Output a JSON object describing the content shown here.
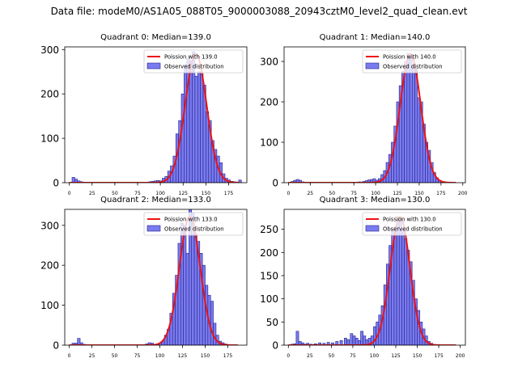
{
  "suptitle": "Data file: modeM0/AS1A05_088T05_9000003088_20943cztM0_level2_quad_clean.evt",
  "colors": {
    "hist_fill": "#7b7bf0",
    "hist_edge": "#23238a",
    "poisson_line": "#ee1111",
    "axes": "#000000"
  },
  "chart_data": [
    {
      "type": "bar",
      "title": "Quadrant 0: Median=139.0",
      "legend": {
        "placement": "top-right",
        "line_label": "Poission with 139.0",
        "hist_label": "Observed distribution"
      },
      "xlim": [
        -5,
        195
      ],
      "ylim": [
        0,
        306
      ],
      "xticks": [
        0,
        25,
        50,
        75,
        100,
        125,
        150,
        175
      ],
      "yticks": [
        0,
        100,
        200,
        300
      ],
      "bin_width": 3,
      "bins": [
        [
          3,
          12
        ],
        [
          6,
          8
        ],
        [
          9,
          4
        ],
        [
          12,
          2
        ],
        [
          15,
          1
        ],
        [
          87,
          2
        ],
        [
          90,
          3
        ],
        [
          93,
          4
        ],
        [
          96,
          5
        ],
        [
          99,
          4
        ],
        [
          102,
          10
        ],
        [
          105,
          14
        ],
        [
          108,
          26
        ],
        [
          111,
          38
        ],
        [
          114,
          60
        ],
        [
          117,
          110
        ],
        [
          120,
          140
        ],
        [
          123,
          200
        ],
        [
          126,
          265
        ],
        [
          129,
          280
        ],
        [
          132,
          275
        ],
        [
          135,
          295
        ],
        [
          138,
          240
        ],
        [
          141,
          250
        ],
        [
          144,
          245
        ],
        [
          147,
          220
        ],
        [
          150,
          160
        ],
        [
          153,
          140
        ],
        [
          156,
          95
        ],
        [
          159,
          75
        ],
        [
          162,
          60
        ],
        [
          165,
          45
        ],
        [
          168,
          20
        ],
        [
          171,
          10
        ],
        [
          174,
          6
        ],
        [
          177,
          3
        ],
        [
          180,
          2
        ],
        [
          183,
          1
        ],
        [
          186,
          6
        ]
      ],
      "poisson_mean": 139.0,
      "poisson_peak": 290,
      "poisson_sigma": 11.8,
      "curve_range": [
        0,
        186
      ]
    },
    {
      "type": "bar",
      "title": "Quadrant 1: Median=140.0",
      "legend": {
        "placement": "top-right",
        "line_label": "Poission with 140.0",
        "hist_label": "Observed distribution"
      },
      "xlim": [
        -5,
        203
      ],
      "ylim": [
        0,
        336
      ],
      "xticks": [
        0,
        25,
        50,
        75,
        100,
        125,
        150,
        175,
        200
      ],
      "yticks": [
        0,
        100,
        200,
        300
      ],
      "bin_width": 3,
      "bins": [
        [
          3,
          3
        ],
        [
          6,
          6
        ],
        [
          9,
          8
        ],
        [
          12,
          6
        ],
        [
          15,
          2
        ],
        [
          75,
          1
        ],
        [
          80,
          2
        ],
        [
          85,
          3
        ],
        [
          88,
          5
        ],
        [
          91,
          7
        ],
        [
          94,
          8
        ],
        [
          97,
          10
        ],
        [
          100,
          6
        ],
        [
          103,
          10
        ],
        [
          106,
          20
        ],
        [
          109,
          30
        ],
        [
          112,
          50
        ],
        [
          115,
          70
        ],
        [
          118,
          100
        ],
        [
          121,
          140
        ],
        [
          124,
          200
        ],
        [
          127,
          240
        ],
        [
          130,
          275
        ],
        [
          133,
          300
        ],
        [
          136,
          320
        ],
        [
          139,
          310
        ],
        [
          142,
          290
        ],
        [
          145,
          280
        ],
        [
          148,
          210
        ],
        [
          151,
          200
        ],
        [
          154,
          145
        ],
        [
          157,
          100
        ],
        [
          160,
          80
        ],
        [
          163,
          50
        ],
        [
          166,
          25
        ],
        [
          169,
          12
        ],
        [
          172,
          6
        ],
        [
          175,
          3
        ],
        [
          178,
          2
        ]
      ],
      "poisson_mean": 140.0,
      "poisson_peak": 318,
      "poisson_sigma": 11.8,
      "curve_range": [
        0,
        192
      ]
    },
    {
      "type": "bar",
      "title": "Quadrant 2: Median=133.0",
      "legend": {
        "placement": "top-right",
        "line_label": "Poission with 133.0",
        "hist_label": "Observed distribution"
      },
      "xlim": [
        -5,
        196
      ],
      "ylim": [
        0,
        340
      ],
      "xticks": [
        0,
        25,
        50,
        75,
        100,
        125,
        150,
        175
      ],
      "yticks": [
        0,
        100,
        200,
        300
      ],
      "bin_width": 3,
      "bins": [
        [
          3,
          5
        ],
        [
          6,
          5
        ],
        [
          9,
          17
        ],
        [
          12,
          6
        ],
        [
          15,
          2
        ],
        [
          84,
          3
        ],
        [
          87,
          6
        ],
        [
          90,
          5
        ],
        [
          96,
          2
        ],
        [
          99,
          5
        ],
        [
          102,
          10
        ],
        [
          105,
          25
        ],
        [
          108,
          40
        ],
        [
          111,
          80
        ],
        [
          114,
          130
        ],
        [
          117,
          175
        ],
        [
          120,
          255
        ],
        [
          123,
          305
        ],
        [
          126,
          300
        ],
        [
          129,
          230
        ],
        [
          132,
          340
        ],
        [
          135,
          330
        ],
        [
          138,
          280
        ],
        [
          141,
          260
        ],
        [
          144,
          230
        ],
        [
          147,
          200
        ],
        [
          150,
          150
        ],
        [
          153,
          125
        ],
        [
          156,
          110
        ],
        [
          159,
          55
        ],
        [
          162,
          25
        ],
        [
          165,
          10
        ],
        [
          168,
          6
        ],
        [
          171,
          3
        ]
      ],
      "poisson_mean": 133.0,
      "poisson_peak": 322,
      "poisson_sigma": 11.5,
      "curve_range": [
        0,
        186
      ]
    },
    {
      "type": "bar",
      "title": "Quadrant 3: Median=130.0",
      "legend": {
        "placement": "top-right",
        "line_label": "Poission with 130.0",
        "hist_label": "Observed distribution"
      },
      "xlim": [
        -5,
        206
      ],
      "ylim": [
        0,
        293
      ],
      "xticks": [
        0,
        25,
        50,
        75,
        100,
        125,
        150,
        175,
        200
      ],
      "yticks": [
        0,
        50,
        100,
        150,
        200,
        250
      ],
      "bin_width": 3,
      "bins": [
        [
          3,
          2
        ],
        [
          6,
          3
        ],
        [
          9,
          30
        ],
        [
          12,
          8
        ],
        [
          15,
          5
        ],
        [
          18,
          2
        ],
        [
          21,
          4
        ],
        [
          25,
          2
        ],
        [
          30,
          3
        ],
        [
          35,
          5
        ],
        [
          40,
          4
        ],
        [
          45,
          6
        ],
        [
          50,
          5
        ],
        [
          55,
          8
        ],
        [
          60,
          10
        ],
        [
          65,
          15
        ],
        [
          68,
          12
        ],
        [
          72,
          25
        ],
        [
          75,
          20
        ],
        [
          78,
          15
        ],
        [
          81,
          10
        ],
        [
          84,
          30
        ],
        [
          87,
          20
        ],
        [
          90,
          12
        ],
        [
          93,
          15
        ],
        [
          96,
          20
        ],
        [
          99,
          40
        ],
        [
          102,
          50
        ],
        [
          105,
          65
        ],
        [
          108,
          85
        ],
        [
          111,
          130
        ],
        [
          114,
          175
        ],
        [
          117,
          215
        ],
        [
          120,
          250
        ],
        [
          123,
          255
        ],
        [
          126,
          270
        ],
        [
          129,
          275
        ],
        [
          132,
          250
        ],
        [
          135,
          230
        ],
        [
          138,
          205
        ],
        [
          141,
          180
        ],
        [
          144,
          140
        ],
        [
          147,
          100
        ],
        [
          150,
          75
        ],
        [
          153,
          50
        ],
        [
          156,
          35
        ],
        [
          159,
          20
        ],
        [
          162,
          8
        ],
        [
          165,
          4
        ]
      ],
      "poisson_mean": 130.0,
      "poisson_peak": 277,
      "poisson_sigma": 11.5,
      "curve_range": [
        0,
        195
      ]
    }
  ]
}
